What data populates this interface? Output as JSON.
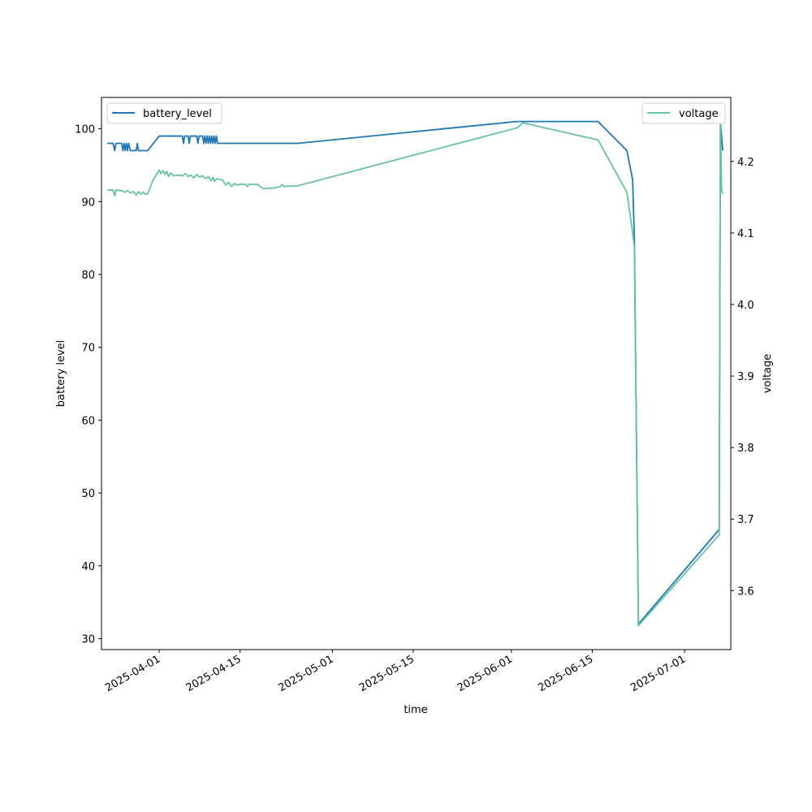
{
  "chart_data": {
    "type": "line",
    "xlabel": "time",
    "ylabel": "battery level",
    "y2label": "voltage",
    "xlim": [
      "2025-03-22",
      "2025-07-09"
    ],
    "ylim": [
      28.5,
      104.3
    ],
    "y2lim": [
      3.5175,
      4.2895
    ],
    "x_ticks": [
      "2025-04-01",
      "2025-04-15",
      "2025-05-01",
      "2025-05-15",
      "2025-06-01",
      "2025-06-15",
      "2025-07-01"
    ],
    "y_ticks": [
      30,
      40,
      50,
      60,
      70,
      80,
      90,
      100
    ],
    "y2_ticks": [
      "3.6",
      "3.7",
      "3.8",
      "3.9",
      "4.0",
      "4.1",
      "4.2"
    ],
    "legend_left": "top-left",
    "legend_right": "top-right",
    "grid": false,
    "series": [
      {
        "name": "battery_level",
        "axis": "left",
        "color": "#1f77b4",
        "points": [
          [
            "2025-03-23",
            98
          ],
          [
            "2025-03-24",
            98
          ],
          [
            "2025-03-24.3",
            97
          ],
          [
            "2025-03-24.5",
            98
          ],
          [
            "2025-03-25.5",
            98
          ],
          [
            "2025-03-25.7",
            97
          ],
          [
            "2025-03-25.9",
            98
          ],
          [
            "2025-03-26.1",
            97
          ],
          [
            "2025-03-26.3",
            98
          ],
          [
            "2025-03-26.5",
            97
          ],
          [
            "2025-03-26.7",
            98
          ],
          [
            "2025-03-27",
            97
          ],
          [
            "2025-03-28",
            97
          ],
          [
            "2025-03-28.2",
            98
          ],
          [
            "2025-03-28.4",
            97
          ],
          [
            "2025-03-29",
            97
          ],
          [
            "2025-03-30",
            97
          ],
          [
            "2025-04-01",
            99
          ],
          [
            "2025-04-05",
            99
          ],
          [
            "2025-04-05.2",
            98
          ],
          [
            "2025-04-05.4",
            99
          ],
          [
            "2025-04-06",
            99
          ],
          [
            "2025-04-06.2",
            98
          ],
          [
            "2025-04-06.4",
            99
          ],
          [
            "2025-04-07.5",
            99
          ],
          [
            "2025-04-07.7",
            98
          ],
          [
            "2025-04-07.9",
            99
          ],
          [
            "2025-04-08.5",
            99
          ],
          [
            "2025-04-08.7",
            98
          ],
          [
            "2025-04-08.9",
            99
          ],
          [
            "2025-04-09.1",
            98
          ],
          [
            "2025-04-09.3",
            99
          ],
          [
            "2025-04-09.5",
            98
          ],
          [
            "2025-04-09.7",
            99
          ],
          [
            "2025-04-09.9",
            98
          ],
          [
            "2025-04-10.1",
            99
          ],
          [
            "2025-04-10.3",
            98
          ],
          [
            "2025-04-10.5",
            99
          ],
          [
            "2025-04-10.7",
            98
          ],
          [
            "2025-04-10.9",
            99
          ],
          [
            "2025-04-11.1",
            98
          ],
          [
            "2025-04-25",
            98
          ],
          [
            "2025-06-02",
            101
          ],
          [
            "2025-06-16",
            101
          ],
          [
            "2025-06-21",
            97
          ],
          [
            "2025-06-22",
            93
          ],
          [
            "2025-06-22.3",
            85
          ],
          [
            "2025-06-23",
            32
          ],
          [
            "2025-07-07",
            45
          ],
          [
            "2025-07-07.2",
            101
          ],
          [
            "2025-07-07.6",
            97
          ]
        ]
      },
      {
        "name": "voltage",
        "axis": "right",
        "color": "#66c2a5",
        "points": [
          [
            "2025-03-23",
            4.16
          ],
          [
            "2025-03-24",
            4.16
          ],
          [
            "2025-03-24.3",
            4.152
          ],
          [
            "2025-03-24.5",
            4.16
          ],
          [
            "2025-03-25.5",
            4.159
          ],
          [
            "2025-03-26",
            4.157
          ],
          [
            "2025-03-26.5",
            4.159
          ],
          [
            "2025-03-27",
            4.156
          ],
          [
            "2025-03-27.5",
            4.158
          ],
          [
            "2025-03-28",
            4.153
          ],
          [
            "2025-03-28.4",
            4.158
          ],
          [
            "2025-03-28.8",
            4.154
          ],
          [
            "2025-03-29.2",
            4.157
          ],
          [
            "2025-03-29.6",
            4.154
          ],
          [
            "2025-03-30",
            4.155
          ],
          [
            "2025-03-31",
            4.175
          ],
          [
            "2025-04-01",
            4.188
          ],
          [
            "2025-04-01.3",
            4.183
          ],
          [
            "2025-04-01.6",
            4.187
          ],
          [
            "2025-04-02",
            4.182
          ],
          [
            "2025-04-02.3",
            4.186
          ],
          [
            "2025-04-02.6",
            4.179
          ],
          [
            "2025-04-03",
            4.184
          ],
          [
            "2025-04-03.5",
            4.18
          ],
          [
            "2025-04-04",
            4.181
          ],
          [
            "2025-04-05",
            4.18
          ],
          [
            "2025-04-05.5",
            4.183
          ],
          [
            "2025-04-06",
            4.179
          ],
          [
            "2025-04-06.5",
            4.181
          ],
          [
            "2025-04-07",
            4.177
          ],
          [
            "2025-04-07.5",
            4.182
          ],
          [
            "2025-04-08",
            4.178
          ],
          [
            "2025-04-08.5",
            4.18
          ],
          [
            "2025-04-09",
            4.176
          ],
          [
            "2025-04-09.5",
            4.179
          ],
          [
            "2025-04-10",
            4.173
          ],
          [
            "2025-04-10.3",
            4.178
          ],
          [
            "2025-04-10.6",
            4.172
          ],
          [
            "2025-04-11",
            4.176
          ],
          [
            "2025-04-12",
            4.174
          ],
          [
            "2025-04-12.5",
            4.167
          ],
          [
            "2025-04-13",
            4.171
          ],
          [
            "2025-04-13.5",
            4.165
          ],
          [
            "2025-04-14",
            4.169
          ],
          [
            "2025-04-14.5",
            4.167
          ],
          [
            "2025-04-15",
            4.168
          ],
          [
            "2025-04-16",
            4.168
          ],
          [
            "2025-04-16.3",
            4.165
          ],
          [
            "2025-04-16.6",
            4.168
          ],
          [
            "2025-04-18",
            4.168
          ],
          [
            "2025-04-19",
            4.162
          ],
          [
            "2025-04-21",
            4.163
          ],
          [
            "2025-04-22",
            4.165
          ],
          [
            "2025-04-22.3",
            4.168
          ],
          [
            "2025-04-22.6",
            4.165
          ],
          [
            "2025-04-25",
            4.166
          ],
          [
            "2025-06-02",
            4.247
          ],
          [
            "2025-06-03",
            4.254
          ],
          [
            "2025-06-16",
            4.23
          ],
          [
            "2025-06-21",
            4.157
          ],
          [
            "2025-06-22",
            4.1
          ],
          [
            "2025-06-22.3",
            4.08
          ],
          [
            "2025-06-23",
            3.551
          ],
          [
            "2025-07-07",
            3.678
          ],
          [
            "2025-07-07.2",
            4.26
          ],
          [
            "2025-07-07.4",
            4.16
          ],
          [
            "2025-07-07.6",
            4.155
          ]
        ]
      }
    ]
  }
}
